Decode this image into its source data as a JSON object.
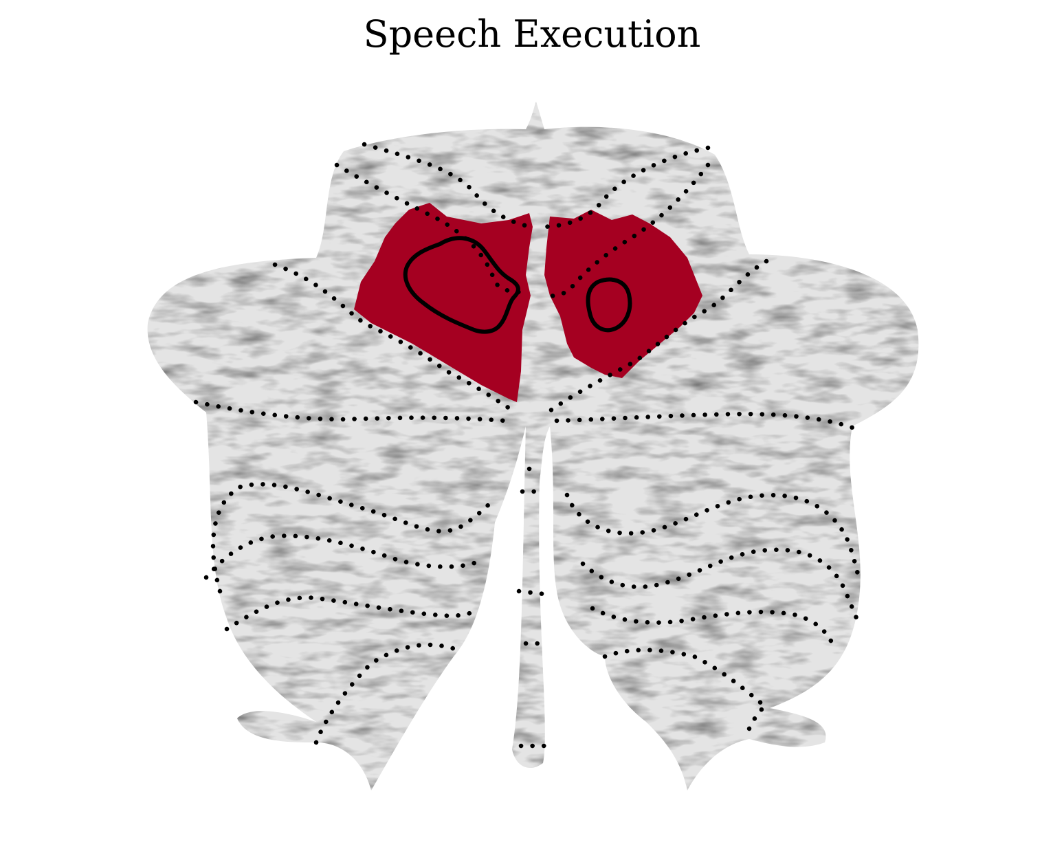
{
  "title": "Speech Execution",
  "colors": {
    "background": "#ffffff",
    "cerebellum_fill": "#e4e4e4",
    "activation": "#a50021",
    "boundary": "#000000"
  },
  "regions": [
    {
      "name": "left-activation",
      "color": "#a50021"
    },
    {
      "name": "right-activation",
      "color": "#a50021"
    }
  ]
}
